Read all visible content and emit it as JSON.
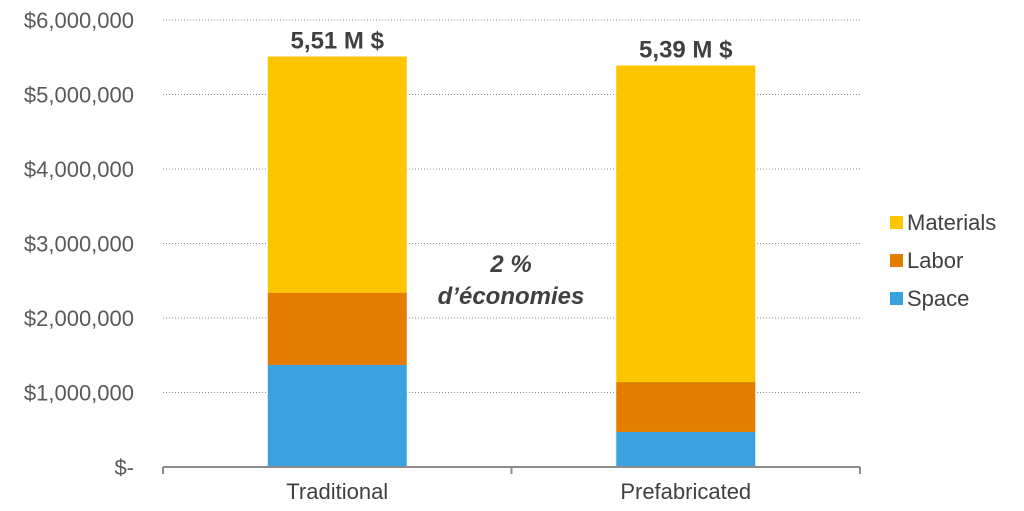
{
  "chart_data": {
    "type": "bar",
    "stacked": true,
    "categories": [
      "Traditional",
      "Prefabricated"
    ],
    "series": [
      {
        "name": "Space",
        "values": [
          1370000,
          470000
        ],
        "color": "#3aa3df"
      },
      {
        "name": "Labor",
        "values": [
          970000,
          670000
        ],
        "color": "#e37d00"
      },
      {
        "name": "Materials",
        "values": [
          3170000,
          4250000
        ],
        "color": "#fcc500"
      }
    ],
    "totals_labels": [
      "5,51 M $",
      "5,39 M $"
    ],
    "annotation": {
      "line1": "2 %",
      "line2": "d’économies"
    },
    "yticks": [
      "$-",
      "$1,000,000",
      "$2,000,000",
      "$3,000,000",
      "$4,000,000",
      "$5,000,000",
      "$6,000,000"
    ],
    "ylim": [
      0,
      6000000
    ],
    "grid": true,
    "legend_position": "right",
    "legend_order": [
      "Materials",
      "Labor",
      "Space"
    ]
  }
}
